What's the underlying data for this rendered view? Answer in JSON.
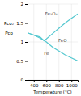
{
  "chart_data": {
    "type": "line",
    "xlabel": "Temperature (°C)",
    "ylabel": [
      "Pco₂",
      "Pco"
    ],
    "x": [
      300,
      400,
      500,
      560,
      600,
      700,
      800,
      900,
      1000,
      1100
    ],
    "series": [
      {
        "color": "#55c8d0",
        "values": [
          1.24,
          1.18,
          1.1,
          1.04,
          1.0,
          0.86,
          0.76,
          0.66,
          0.58,
          0.5
        ]
      },
      {
        "color": "#55c8d0",
        "values": [
          1.24,
          1.18,
          1.13,
          1.04,
          1.08,
          1.22,
          1.36,
          1.5,
          1.62,
          1.74
        ]
      }
    ],
    "annotations": [
      {
        "text": "Fe₃O₄",
        "x": 580,
        "y": 1.74
      },
      {
        "text": "FeO",
        "x": 790,
        "y": 1.04
      },
      {
        "text": "Fe",
        "x": 560,
        "y": 0.7
      }
    ],
    "xlim": [
      300,
      1100
    ],
    "ylim": [
      0,
      2
    ],
    "xticks": [
      400,
      600,
      800,
      1000
    ],
    "yticks": [
      0,
      0.5,
      1,
      1.5,
      2
    ],
    "grid": true
  }
}
